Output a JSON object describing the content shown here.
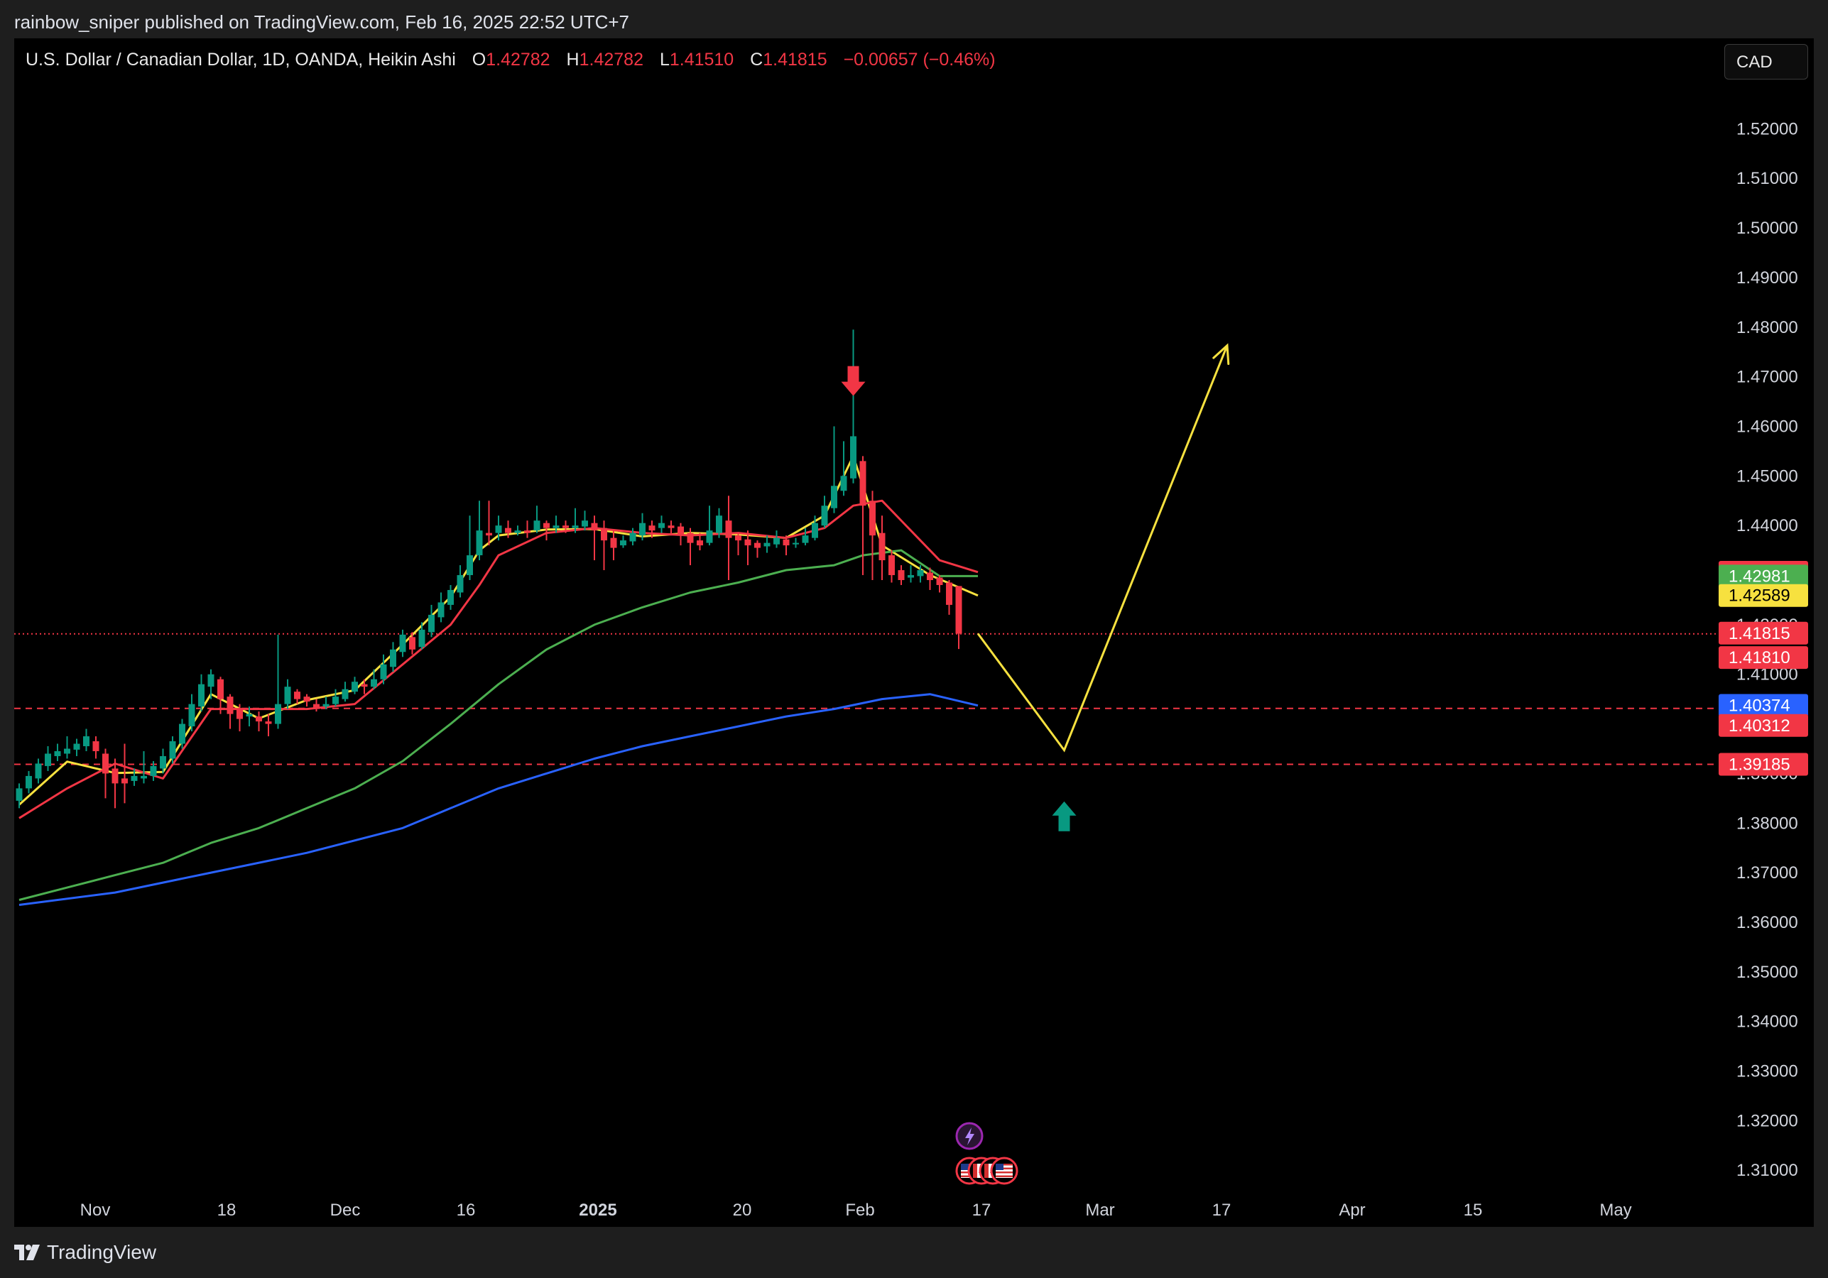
{
  "publisher": "rainbow_sniper published on TradingView.com, Feb 16, 2025 22:52 UTC+7",
  "currency_button": "CAD",
  "footer_logo": "TradingView",
  "legend": {
    "symbol": "U.S. Dollar / Canadian Dollar, 1D, OANDA, Heikin Ashi",
    "open_label": "O",
    "open": "1.42782",
    "high_label": "H",
    "high": "1.42782",
    "low_label": "L",
    "low": "1.41510",
    "close_label": "C",
    "close": "1.41815",
    "change": "−0.00657 (−0.46%)"
  },
  "colors": {
    "bull": "#089981",
    "bear": "#f23645",
    "ma_fast": "#f7e13f",
    "ma_mid": "#f23645",
    "ma_slow": "#4caf50",
    "ma_long": "#2962ff",
    "projection": "#f7e13f"
  },
  "chart_data": {
    "type": "candlestick",
    "title": "",
    "x_tick_labels": [
      "Nov",
      "18",
      "Dec",
      "16",
      "2025",
      "20",
      "Feb",
      "17",
      "Mar",
      "17",
      "Apr",
      "15",
      "May"
    ],
    "y_ticks": [
      "1.52000",
      "1.51000",
      "1.50000",
      "1.49000",
      "1.48000",
      "1.47000",
      "1.46000",
      "1.45000",
      "1.44000",
      "1.43000",
      "1.42000",
      "1.41000",
      "1.40000",
      "1.39000",
      "1.38000",
      "1.37000",
      "1.36000",
      "1.35000",
      "1.34000",
      "1.33000",
      "1.32000",
      "1.31000"
    ],
    "ylim": [
      1.3086,
      1.5285
    ],
    "price_tags": [
      {
        "value": 1.43057,
        "label": "1.43057",
        "bg": "#f23645",
        "fg": "#ffffff"
      },
      {
        "value": 1.42981,
        "label": "1.42981",
        "bg": "#4caf50",
        "fg": "#ffffff"
      },
      {
        "value": 1.42589,
        "label": "1.42589",
        "bg": "#f7e13f",
        "fg": "#000000"
      },
      {
        "value": 1.41815,
        "label": "1.41815",
        "bg": "#f23645",
        "fg": "#ffffff"
      },
      {
        "value": 1.4181,
        "label": "1.41810",
        "bg": "#f23645",
        "fg": "#ffffff"
      },
      {
        "value": 1.40374,
        "label": "1.40374",
        "bg": "#2962ff",
        "fg": "#ffffff"
      },
      {
        "value": 1.40312,
        "label": "1.40312",
        "bg": "#f23645",
        "fg": "#ffffff"
      },
      {
        "value": 1.39185,
        "label": "1.39185",
        "bg": "#f23645",
        "fg": "#ffffff"
      }
    ],
    "horizontal_lines": [
      {
        "value": 1.41815,
        "style": "dotted",
        "color": "#f23645"
      },
      {
        "value": 1.40312,
        "style": "dashed",
        "color": "#f23645"
      },
      {
        "value": 1.39185,
        "style": "dashed",
        "color": "#f23645"
      }
    ],
    "candles": [
      [
        1.3845,
        1.387,
        1.383,
        1.388
      ],
      [
        1.387,
        1.3895,
        1.386,
        1.3905
      ],
      [
        1.389,
        1.392,
        1.388,
        1.393
      ],
      [
        1.3915,
        1.394,
        1.3905,
        1.3955
      ],
      [
        1.3935,
        1.3945,
        1.3925,
        1.396
      ],
      [
        1.394,
        1.395,
        1.393,
        1.3975
      ],
      [
        1.3948,
        1.396,
        1.3935,
        1.397
      ],
      [
        1.3955,
        1.3975,
        1.3945,
        1.399
      ],
      [
        1.3965,
        1.3945,
        1.393,
        1.3975
      ],
      [
        1.394,
        1.39,
        1.385,
        1.395
      ],
      [
        1.391,
        1.388,
        1.383,
        1.393
      ],
      [
        1.389,
        1.388,
        1.384,
        1.396
      ],
      [
        1.3885,
        1.3895,
        1.3875,
        1.391
      ],
      [
        1.389,
        1.3895,
        1.388,
        1.3945
      ],
      [
        1.3895,
        1.3915,
        1.3885,
        1.3925
      ],
      [
        1.391,
        1.3935,
        1.39,
        1.395
      ],
      [
        1.393,
        1.3965,
        1.392,
        1.3975
      ],
      [
        1.396,
        1.4,
        1.395,
        1.401
      ],
      [
        1.3995,
        1.404,
        1.3985,
        1.406
      ],
      [
        1.4035,
        1.408,
        1.4025,
        1.41
      ],
      [
        1.4075,
        1.41,
        1.405,
        1.411
      ],
      [
        1.409,
        1.405,
        1.402,
        1.4095
      ],
      [
        1.4055,
        1.402,
        1.399,
        1.406
      ],
      [
        1.403,
        1.401,
        1.3985,
        1.404
      ],
      [
        1.4015,
        1.402,
        1.3995,
        1.4035
      ],
      [
        1.4015,
        1.4005,
        1.3985,
        1.4025
      ],
      [
        1.4005,
        1.4,
        1.3975,
        1.402
      ],
      [
        1.4,
        1.404,
        1.399,
        1.418
      ],
      [
        1.404,
        1.4075,
        1.403,
        1.409
      ],
      [
        1.4065,
        1.405,
        1.404,
        1.407
      ],
      [
        1.4055,
        1.4045,
        1.4035,
        1.406
      ],
      [
        1.404,
        1.403,
        1.4025,
        1.405
      ],
      [
        1.4035,
        1.404,
        1.403,
        1.4055
      ],
      [
        1.404,
        1.4055,
        1.4035,
        1.407
      ],
      [
        1.405,
        1.407,
        1.4045,
        1.4085
      ],
      [
        1.4065,
        1.4085,
        1.406,
        1.4095
      ],
      [
        1.408,
        1.4075,
        1.406,
        1.409
      ],
      [
        1.4075,
        1.409,
        1.407,
        1.411
      ],
      [
        1.409,
        1.412,
        1.408,
        1.414
      ],
      [
        1.4115,
        1.415,
        1.4105,
        1.4165
      ],
      [
        1.4145,
        1.418,
        1.4135,
        1.419
      ],
      [
        1.4175,
        1.415,
        1.414,
        1.4185
      ],
      [
        1.4155,
        1.419,
        1.415,
        1.4205
      ],
      [
        1.4185,
        1.422,
        1.4175,
        1.424
      ],
      [
        1.4215,
        1.4245,
        1.4205,
        1.4265
      ],
      [
        1.424,
        1.427,
        1.423,
        1.428
      ],
      [
        1.4265,
        1.43,
        1.4255,
        1.432
      ],
      [
        1.43,
        1.434,
        1.429,
        1.442
      ],
      [
        1.434,
        1.439,
        1.433,
        1.445
      ],
      [
        1.4385,
        1.438,
        1.436,
        1.445
      ],
      [
        1.4385,
        1.44,
        1.437,
        1.442
      ],
      [
        1.4395,
        1.4385,
        1.4375,
        1.441
      ],
      [
        1.4385,
        1.439,
        1.438,
        1.44
      ],
      [
        1.439,
        1.4385,
        1.4375,
        1.441
      ],
      [
        1.439,
        1.441,
        1.4385,
        1.444
      ],
      [
        1.4405,
        1.4395,
        1.437,
        1.441
      ],
      [
        1.4395,
        1.44,
        1.4385,
        1.442
      ],
      [
        1.44,
        1.4395,
        1.4385,
        1.441
      ],
      [
        1.4395,
        1.44,
        1.4385,
        1.4435
      ],
      [
        1.4398,
        1.441,
        1.439,
        1.443
      ],
      [
        1.4405,
        1.439,
        1.433,
        1.442
      ],
      [
        1.4395,
        1.437,
        1.431,
        1.441
      ],
      [
        1.4375,
        1.4355,
        1.433,
        1.439
      ],
      [
        1.436,
        1.437,
        1.4355,
        1.438
      ],
      [
        1.4368,
        1.4385,
        1.436,
        1.4395
      ],
      [
        1.438,
        1.4405,
        1.437,
        1.4425
      ],
      [
        1.44,
        1.439,
        1.4375,
        1.441
      ],
      [
        1.4395,
        1.4405,
        1.4385,
        1.442
      ],
      [
        1.44,
        1.4395,
        1.438,
        1.441
      ],
      [
        1.4398,
        1.438,
        1.436,
        1.4405
      ],
      [
        1.4385,
        1.4365,
        1.432,
        1.4395
      ],
      [
        1.437,
        1.436,
        1.435,
        1.4385
      ],
      [
        1.4365,
        1.439,
        1.436,
        1.444
      ],
      [
        1.4385,
        1.442,
        1.4375,
        1.4435
      ],
      [
        1.441,
        1.4375,
        1.429,
        1.446
      ],
      [
        1.438,
        1.437,
        1.434,
        1.4385
      ],
      [
        1.4372,
        1.436,
        1.432,
        1.439
      ],
      [
        1.4365,
        1.4355,
        1.4335,
        1.437
      ],
      [
        1.4358,
        1.4365,
        1.4345,
        1.438
      ],
      [
        1.4362,
        1.4375,
        1.4355,
        1.439
      ],
      [
        1.4372,
        1.436,
        1.434,
        1.438
      ],
      [
        1.4362,
        1.4365,
        1.4355,
        1.4375
      ],
      [
        1.4365,
        1.438,
        1.436,
        1.4395
      ],
      [
        1.4375,
        1.4405,
        1.437,
        1.442
      ],
      [
        1.44,
        1.444,
        1.4395,
        1.446
      ],
      [
        1.4435,
        1.448,
        1.4425,
        1.46
      ],
      [
        1.447,
        1.45,
        1.446,
        1.457
      ],
      [
        1.4495,
        1.458,
        1.4485,
        1.4795
      ],
      [
        1.453,
        1.444,
        1.43,
        1.454
      ],
      [
        1.445,
        1.438,
        1.429,
        1.447
      ],
      [
        1.4385,
        1.433,
        1.429,
        1.442
      ],
      [
        1.434,
        1.43,
        1.4285,
        1.435
      ],
      [
        1.431,
        1.429,
        1.428,
        1.432
      ],
      [
        1.4295,
        1.43,
        1.4285,
        1.432
      ],
      [
        1.4298,
        1.431,
        1.4285,
        1.432
      ],
      [
        1.4305,
        1.429,
        1.427,
        1.4315
      ],
      [
        1.4295,
        1.428,
        1.4265,
        1.43
      ],
      [
        1.4285,
        1.424,
        1.422,
        1.429
      ],
      [
        1.4278,
        1.4182,
        1.4151,
        1.4278
      ]
    ],
    "moving_averages": [
      {
        "color": "#f7e13f",
        "points": [
          [
            0,
            1.3837
          ],
          [
            5,
            1.3924
          ],
          [
            10,
            1.3901
          ],
          [
            15,
            1.3903
          ],
          [
            20,
            1.406
          ],
          [
            25,
            1.4011
          ],
          [
            30,
            1.4048
          ],
          [
            35,
            1.4068
          ],
          [
            40,
            1.416
          ],
          [
            45,
            1.4256
          ],
          [
            48,
            1.435
          ],
          [
            50,
            1.438
          ],
          [
            55,
            1.4392
          ],
          [
            60,
            1.4393
          ],
          [
            65,
            1.4378
          ],
          [
            70,
            1.4385
          ],
          [
            75,
            1.4382
          ],
          [
            80,
            1.4375
          ],
          [
            84,
            1.442
          ],
          [
            87,
            1.454
          ],
          [
            90,
            1.436
          ],
          [
            95,
            1.43
          ],
          [
            100,
            1.4259
          ]
        ]
      },
      {
        "color": "#f23645",
        "points": [
          [
            0,
            1.381
          ],
          [
            5,
            1.387
          ],
          [
            10,
            1.392
          ],
          [
            15,
            1.389
          ],
          [
            20,
            1.403
          ],
          [
            25,
            1.403
          ],
          [
            30,
            1.403
          ],
          [
            35,
            1.404
          ],
          [
            40,
            1.412
          ],
          [
            45,
            1.42
          ],
          [
            48,
            1.428
          ],
          [
            50,
            1.434
          ],
          [
            55,
            1.4385
          ],
          [
            60,
            1.4395
          ],
          [
            65,
            1.4385
          ],
          [
            70,
            1.438
          ],
          [
            75,
            1.4385
          ],
          [
            80,
            1.4375
          ],
          [
            84,
            1.4395
          ],
          [
            87,
            1.444
          ],
          [
            90,
            1.445
          ],
          [
            93,
            1.439
          ],
          [
            96,
            1.433
          ],
          [
            100,
            1.4306
          ]
        ]
      },
      {
        "color": "#4caf50",
        "points": [
          [
            0,
            1.3645
          ],
          [
            5,
            1.367
          ],
          [
            10,
            1.3695
          ],
          [
            15,
            1.372
          ],
          [
            20,
            1.376
          ],
          [
            25,
            1.379
          ],
          [
            30,
            1.383
          ],
          [
            35,
            1.387
          ],
          [
            40,
            1.3925
          ],
          [
            45,
            1.4
          ],
          [
            50,
            1.408
          ],
          [
            55,
            1.415
          ],
          [
            60,
            1.42
          ],
          [
            65,
            1.4235
          ],
          [
            70,
            1.4265
          ],
          [
            75,
            1.4285
          ],
          [
            80,
            1.431
          ],
          [
            85,
            1.432
          ],
          [
            88,
            1.434
          ],
          [
            92,
            1.435
          ],
          [
            96,
            1.4298
          ],
          [
            100,
            1.4298
          ]
        ]
      },
      {
        "color": "#2962ff",
        "points": [
          [
            0,
            1.3635
          ],
          [
            10,
            1.366
          ],
          [
            20,
            1.37
          ],
          [
            30,
            1.374
          ],
          [
            40,
            1.379
          ],
          [
            45,
            1.383
          ],
          [
            50,
            1.387
          ],
          [
            55,
            1.39
          ],
          [
            60,
            1.393
          ],
          [
            65,
            1.3955
          ],
          [
            70,
            1.3975
          ],
          [
            75,
            1.3995
          ],
          [
            80,
            1.4015
          ],
          [
            85,
            1.403
          ],
          [
            90,
            1.405
          ],
          [
            95,
            1.406
          ],
          [
            100,
            1.4037
          ]
        ]
      }
    ],
    "projection_path": [
      [
        100,
        1.4182
      ],
      [
        109,
        1.3947
      ],
      [
        126,
        1.4763
      ]
    ],
    "signals": [
      {
        "type": "sell-arrow",
        "x": 87,
        "y": 1.469,
        "color": "#f23645"
      },
      {
        "type": "buy-arrow",
        "x": 109,
        "y": 1.3815,
        "color": "#089981"
      }
    ],
    "event_icons": [
      "lightning",
      "us-flag",
      "canada-flag",
      "canada-flag",
      "us-flag"
    ]
  }
}
